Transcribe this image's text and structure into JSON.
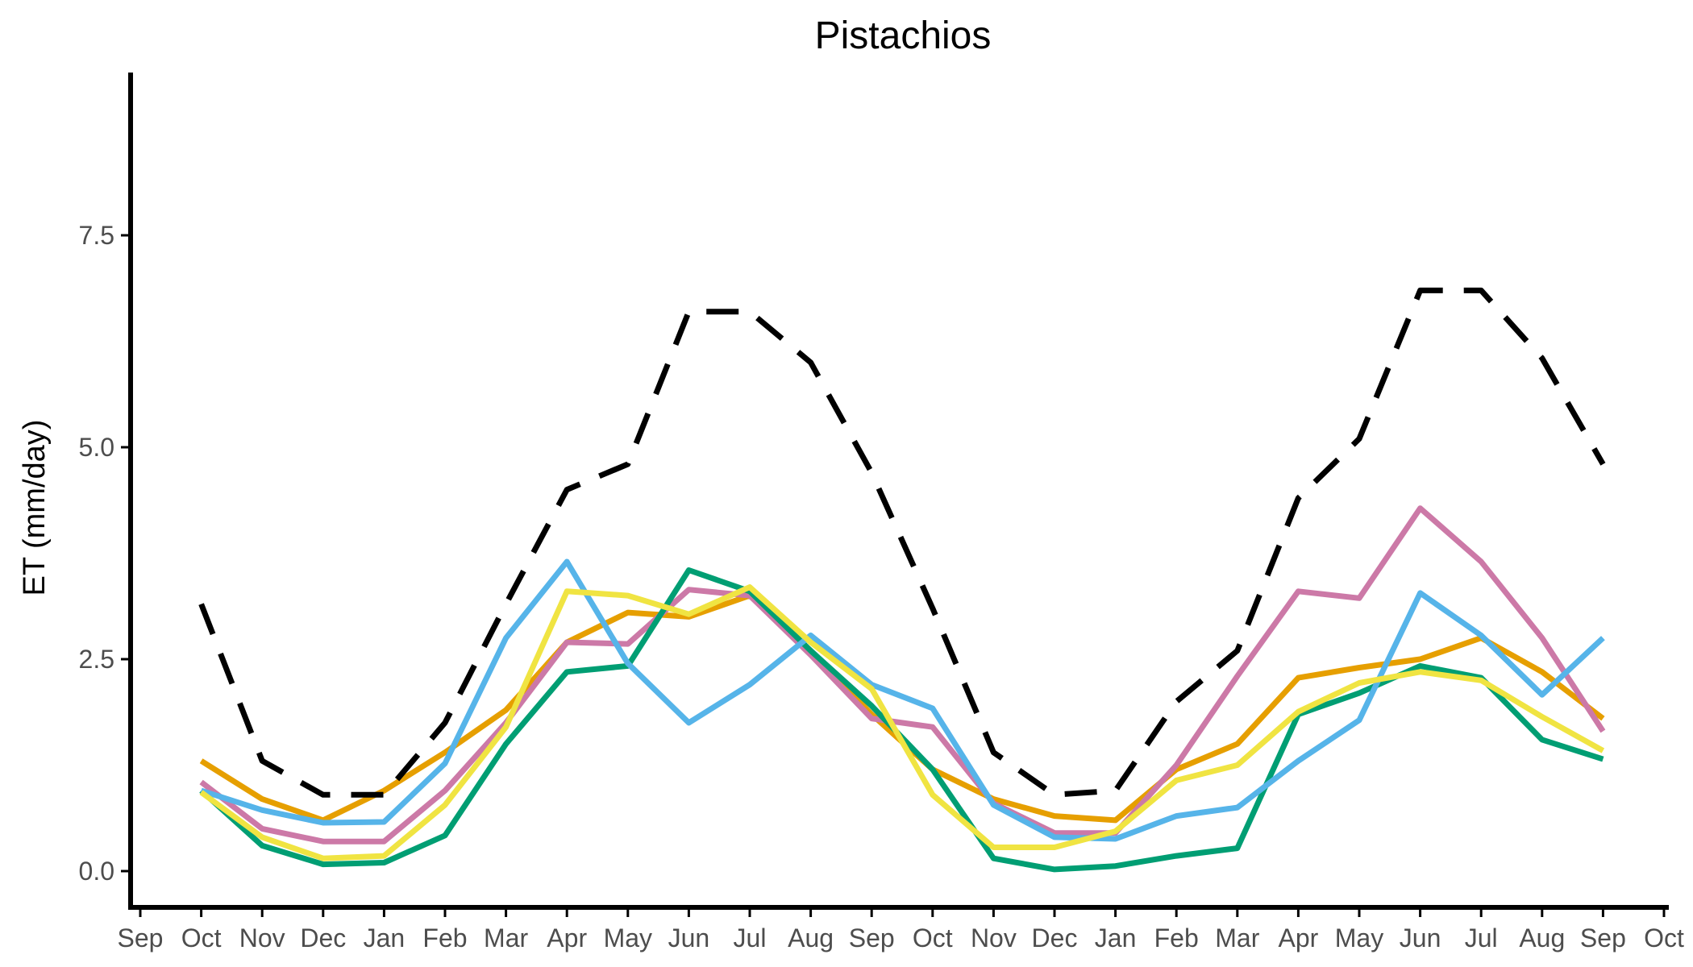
{
  "chart_data": {
    "type": "line",
    "title": "Pistachios",
    "xlabel": "",
    "ylabel": "ET (mm/day)",
    "ylim": [
      -0.45,
      9.45
    ],
    "y_ticks": [
      "0.0",
      "2.5",
      "5.0",
      "7.5"
    ],
    "y_tick_values": [
      0,
      2.5,
      5.0,
      7.5
    ],
    "x_tick_labels": [
      "Sep",
      "Oct",
      "Nov",
      "Dec",
      "Jan",
      "Feb",
      "Mar",
      "Apr",
      "May",
      "Jun",
      "Jul",
      "Aug",
      "Sep",
      "Oct",
      "Nov",
      "Dec",
      "Jan",
      "Feb",
      "Mar",
      "Apr",
      "May",
      "Jun",
      "Jul",
      "Aug",
      "Sep",
      "Oct"
    ],
    "grid": false,
    "legend": "none",
    "series": [
      {
        "style": "dashed",
        "color": "#000000",
        "values": [
          3.15,
          1.3,
          0.9,
          0.9,
          1.75,
          3.15,
          4.5,
          4.8,
          6.6,
          6.6,
          6.0,
          4.7,
          3.1,
          1.4,
          0.9,
          0.95,
          2.0,
          2.6,
          4.4,
          5.1,
          6.85,
          6.85,
          6.05,
          4.8
        ]
      },
      {
        "style": "solid",
        "color": "#E69F00",
        "values": [
          1.3,
          0.85,
          0.6,
          0.95,
          1.4,
          1.9,
          2.7,
          3.05,
          3.0,
          3.25,
          2.6,
          1.85,
          1.2,
          0.85,
          0.65,
          0.6,
          1.2,
          1.5,
          2.28,
          2.4,
          2.5,
          2.75,
          2.35,
          1.8
        ]
      },
      {
        "style": "solid",
        "color": "#CC79A7",
        "values": [
          1.05,
          0.5,
          0.35,
          0.35,
          0.95,
          1.75,
          2.7,
          2.68,
          3.32,
          3.25,
          2.55,
          1.8,
          1.7,
          0.8,
          0.45,
          0.45,
          1.25,
          2.3,
          3.3,
          3.22,
          4.28,
          3.65,
          2.75,
          1.65
        ]
      },
      {
        "style": "solid",
        "color": "#009E73",
        "values": [
          0.95,
          0.3,
          0.08,
          0.1,
          0.42,
          1.5,
          2.35,
          2.42,
          3.55,
          3.3,
          2.6,
          1.95,
          1.2,
          0.15,
          0.02,
          0.06,
          0.18,
          0.27,
          1.85,
          2.1,
          2.42,
          2.28,
          1.55,
          1.32
        ]
      },
      {
        "style": "solid",
        "color": "#56B4E9",
        "values": [
          0.95,
          0.72,
          0.57,
          0.58,
          1.27,
          2.75,
          3.65,
          2.45,
          1.75,
          2.2,
          2.78,
          2.2,
          1.92,
          0.78,
          0.4,
          0.38,
          0.65,
          0.75,
          1.3,
          1.78,
          3.28,
          2.78,
          2.08,
          2.75
        ]
      },
      {
        "style": "solid",
        "color": "#F0E442",
        "values": [
          0.93,
          0.4,
          0.15,
          0.18,
          0.78,
          1.7,
          3.3,
          3.25,
          3.03,
          3.35,
          2.7,
          2.15,
          0.9,
          0.28,
          0.28,
          0.47,
          1.07,
          1.25,
          1.88,
          2.22,
          2.35,
          2.25,
          1.82,
          1.42
        ]
      }
    ]
  }
}
